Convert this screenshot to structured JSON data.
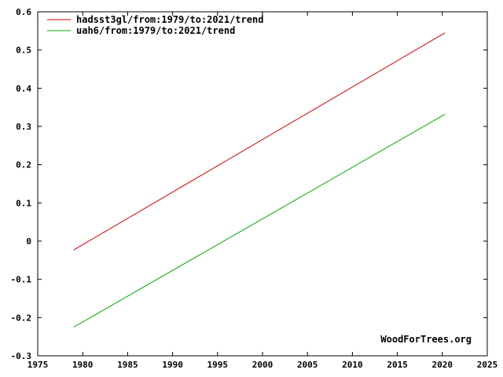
{
  "chart_data": {
    "type": "line",
    "title": "",
    "xlabel": "",
    "ylabel": "",
    "xlim": [
      1975,
      2025
    ],
    "ylim": [
      -0.3,
      0.6
    ],
    "xticks": [
      "1975",
      "1980",
      "1985",
      "1990",
      "1995",
      "2000",
      "2005",
      "2010",
      "2015",
      "2020",
      "2025"
    ],
    "yticks": [
      "-0.3",
      "-0.2",
      "-0.1",
      "0",
      "0.1",
      "0.2",
      "0.3",
      "0.4",
      "0.5",
      "0.6"
    ],
    "grid": false,
    "legend_position": "top-left",
    "series": [
      {
        "name": "hadsst3gl/from:1979/to:2021/trend",
        "color": "#cc0000",
        "x": [
          1979.0,
          2020.3
        ],
        "y": [
          -0.023,
          0.545
        ]
      },
      {
        "name": "uah6/from:1979/to:2021/trend",
        "color": "#00aa00",
        "x": [
          1979.0,
          2020.3
        ],
        "y": [
          -0.225,
          0.332
        ]
      }
    ],
    "credit": "WoodForTrees.org"
  }
}
